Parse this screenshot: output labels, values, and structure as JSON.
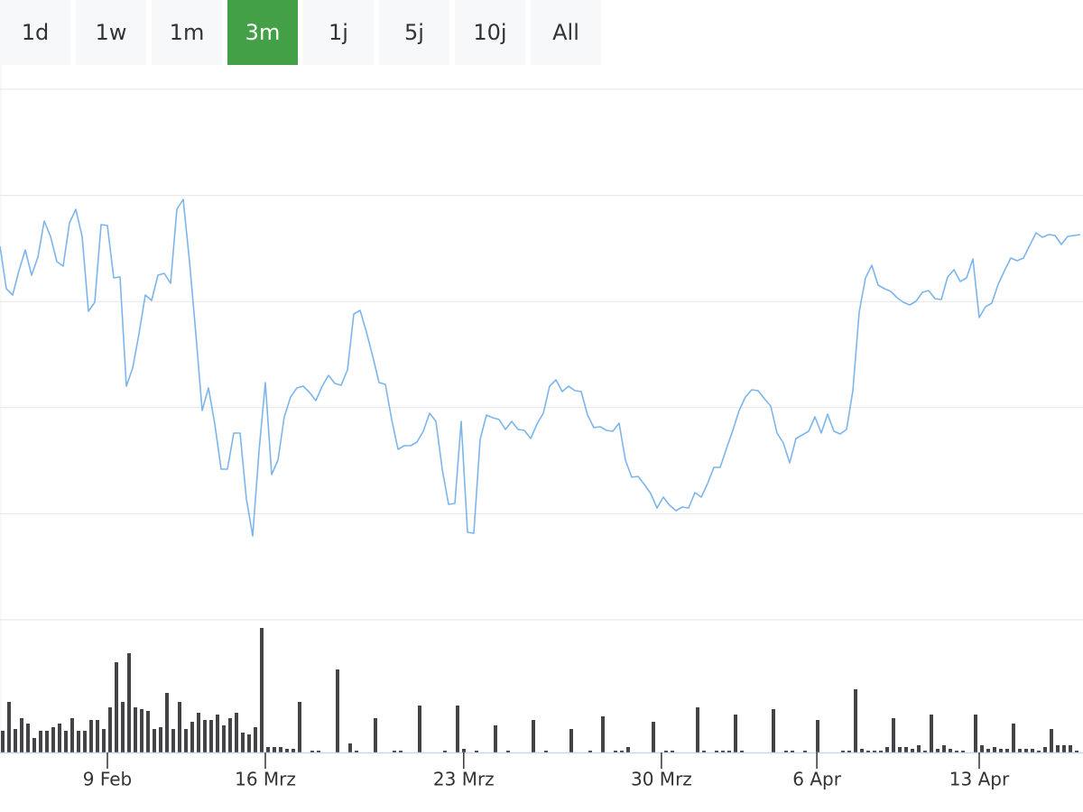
{
  "chart_data": {
    "type": "line",
    "range_buttons": [
      "1d",
      "1w",
      "1m",
      "3m",
      "1j",
      "5j",
      "10j",
      "All"
    ],
    "selected_button": 3,
    "xlim": [
      0,
      171
    ],
    "xticks": [
      {
        "value": 17,
        "label": "9 Feb"
      },
      {
        "value": 42,
        "label": "16 Mrz"
      },
      {
        "value": 73.4,
        "label": "23 Mrz"
      },
      {
        "value": 104.7,
        "label": "30 Mrz"
      },
      {
        "value": 129.3,
        "label": "6 Apr"
      },
      {
        "value": 155,
        "label": "13 Apr"
      }
    ],
    "ylim": [
      0,
      588
    ],
    "yticks": [
      0,
      117.6,
      235.2,
      352.8,
      470.4,
      588
    ],
    "y2lim": [
      0,
      147
    ],
    "grid": true,
    "series": [
      {
        "color": "#7cb5ec",
        "values": [
          414,
          367,
          360,
          387,
          410,
          382,
          402,
          442,
          425,
          397,
          392,
          440,
          455,
          425,
          342,
          352,
          438,
          437,
          379,
          380,
          259,
          279,
          317,
          360,
          354,
          382,
          384,
          373,
          455,
          466,
          397,
          317,
          232,
          257,
          217,
          167,
          167,
          207,
          207,
          134,
          93,
          187,
          263,
          161,
          177,
          225,
          247,
          257,
          259,
          252,
          243,
          259,
          271,
          262,
          260,
          277,
          339,
          343,
          319,
          292,
          263,
          261,
          222,
          189,
          193,
          193,
          197,
          209,
          229,
          220,
          167,
          128,
          129,
          220,
          97,
          96,
          200,
          227,
          224,
          222,
          211,
          220,
          211,
          210,
          201,
          217,
          229,
          259,
          266,
          253,
          259,
          254,
          253,
          227,
          213,
          214,
          210,
          209,
          218,
          177,
          158,
          159,
          150,
          140,
          124,
          136,
          127,
          121,
          125,
          124,
          141,
          136,
          151,
          169,
          169,
          190,
          210,
          232,
          247,
          255,
          254,
          245,
          237,
          207,
          196,
          174,
          201,
          205,
          209,
          225,
          207,
          228,
          209,
          206,
          211,
          254,
          341,
          379,
          393,
          371,
          367,
          364,
          357,
          352,
          349,
          353,
          363,
          365,
          356,
          355,
          380,
          388,
          375,
          379,
          400,
          335,
          347,
          351,
          372,
          387,
          401,
          398,
          401,
          415,
          429,
          424,
          427,
          426,
          416,
          425,
          426,
          427
        ]
      },
      {
        "color": "#434348",
        "axis": "y2",
        "values": [
          24,
          56,
          26,
          38,
          32,
          16,
          24,
          24,
          28,
          32,
          24,
          38,
          24,
          24,
          36,
          36,
          26,
          50,
          100,
          56,
          110,
          50,
          48,
          46,
          26,
          28,
          66,
          26,
          56,
          26,
          34,
          44,
          36,
          36,
          42,
          30,
          38,
          44,
          22,
          20,
          28,
          138,
          6,
          6,
          6,
          4,
          4,
          56,
          0,
          2,
          2,
          0,
          0,
          92,
          0,
          10,
          2,
          0,
          0,
          38,
          0,
          0,
          2,
          2,
          0,
          0,
          52,
          0,
          0,
          0,
          2,
          0,
          52,
          4,
          0,
          2,
          0,
          0,
          30,
          0,
          2,
          0,
          0,
          0,
          36,
          0,
          2,
          0,
          0,
          0,
          26,
          0,
          0,
          2,
          0,
          40,
          0,
          2,
          2,
          6,
          0,
          0,
          0,
          34,
          0,
          2,
          2,
          0,
          0,
          0,
          50,
          2,
          0,
          2,
          2,
          2,
          42,
          2,
          0,
          0,
          0,
          0,
          48,
          0,
          2,
          2,
          0,
          2,
          0,
          36,
          0,
          0,
          0,
          2,
          2,
          70,
          4,
          2,
          2,
          2,
          6,
          38,
          6,
          6,
          4,
          8,
          2,
          42,
          4,
          8,
          4,
          2,
          2,
          0,
          42,
          8,
          4,
          6,
          4,
          4,
          32,
          4,
          4,
          4,
          2,
          6,
          26,
          8,
          8,
          8,
          2,
          0
        ]
      }
    ]
  }
}
